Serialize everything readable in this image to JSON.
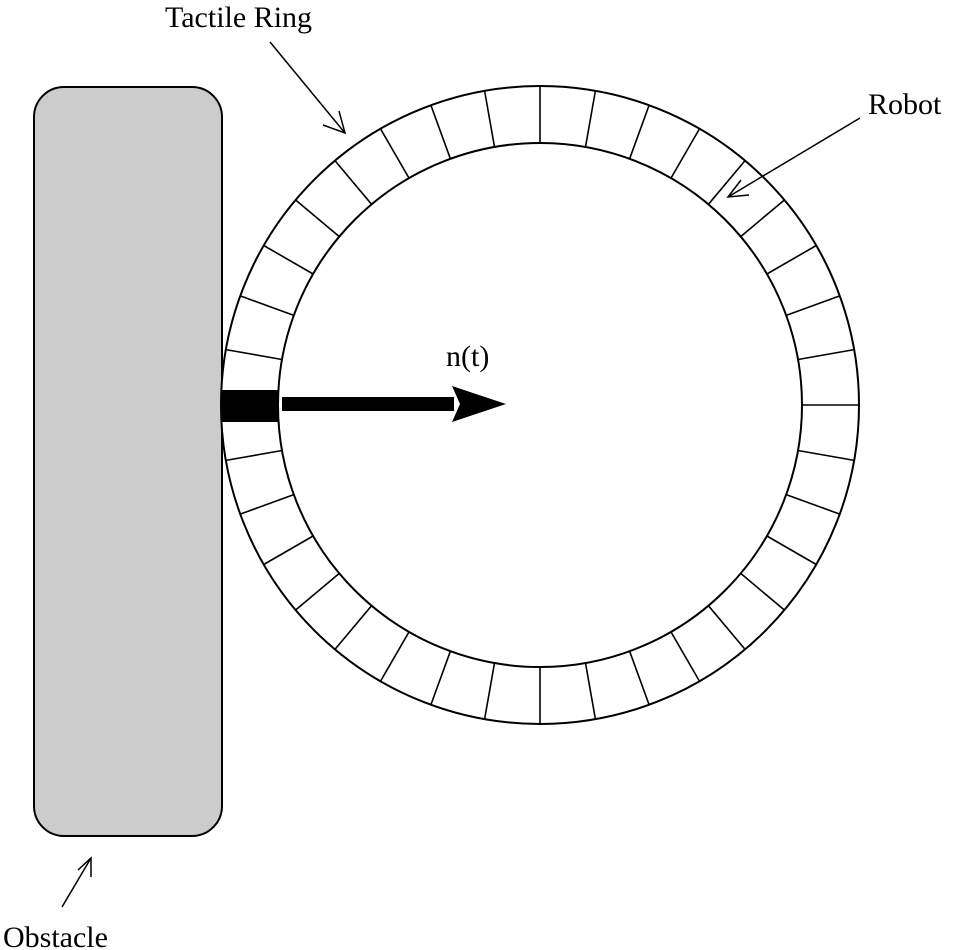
{
  "labels": {
    "tactile_ring": "Tactile Ring",
    "robot": "Robot",
    "obstacle": "Obstacle",
    "normal_vector": "n(t)"
  },
  "ring": {
    "segment_count": 36
  },
  "colors": {
    "obstacle_fill": "#cccccc",
    "stroke": "#000000",
    "background": "#ffffff",
    "active_sensor": "#000000",
    "arrow": "#000000"
  }
}
